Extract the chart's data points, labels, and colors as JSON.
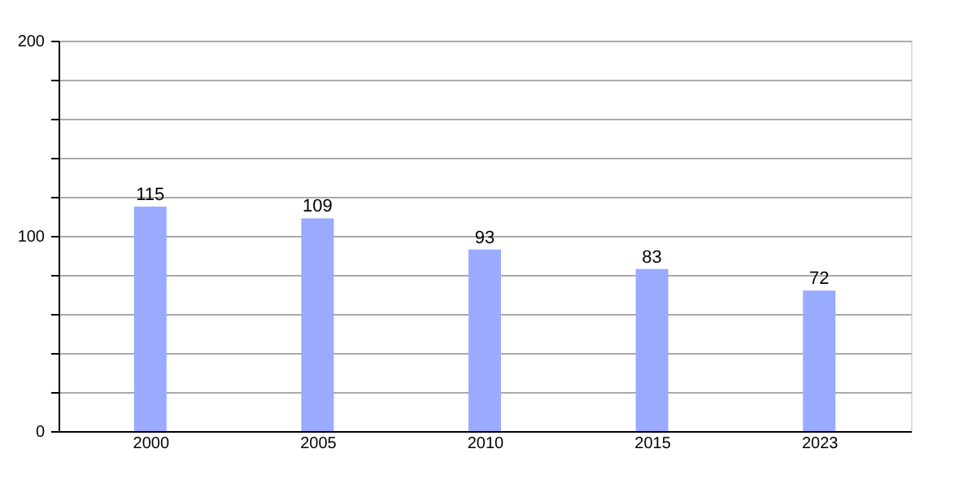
{
  "chart_data": {
    "type": "bar",
    "categories": [
      "2000",
      "2005",
      "2010",
      "2015",
      "2023"
    ],
    "values": [
      115,
      109,
      93,
      83,
      72
    ],
    "color": "#99aaff",
    "ylim": [
      0,
      200
    ],
    "yticks": [
      0,
      {
        "value": 20,
        "label": null
      },
      {
        "value": 40,
        "label": null
      },
      {
        "value": 60,
        "label": null
      },
      {
        "value": 80,
        "label": null
      },
      100,
      {
        "value": 120,
        "label": null
      },
      {
        "value": 140,
        "label": null
      },
      {
        "value": 160,
        "label": null
      },
      {
        "value": 180,
        "label": null
      },
      200
    ],
    "grid": "y",
    "data_labels": true
  }
}
